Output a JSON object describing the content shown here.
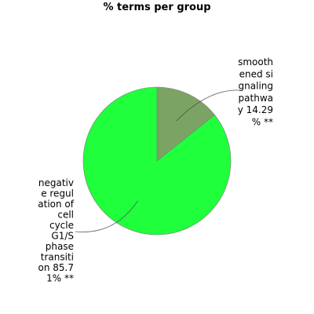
{
  "chart_data": {
    "type": "pie",
    "title": "% terms per group",
    "slices": [
      {
        "label_lines": [
          "smooth",
          "ened si",
          "gnaling",
          "pathwa",
          "y 14.29",
          "% **"
        ],
        "value": 14.29,
        "color": "#7ba464"
      },
      {
        "label_lines": [
          "negativ",
          "e regul",
          "ation of",
          "cell",
          "cycle",
          "G1/S",
          "phase",
          "transiti",
          "on 85.7",
          "1% **"
        ],
        "value": 85.71,
        "color": "#1fff3b"
      }
    ]
  }
}
